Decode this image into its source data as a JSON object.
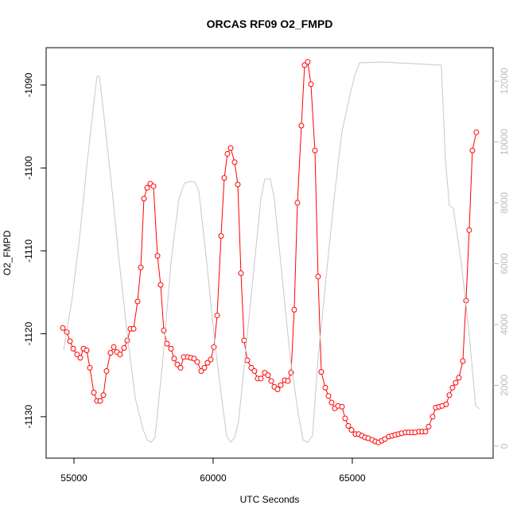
{
  "chart_data": {
    "type": "line",
    "title": "ORCAS RF09 O2_FMPD",
    "x_label": "UTC Seconds",
    "y_label": "O2_FMPD",
    "xlim": [
      54000,
      70060
    ],
    "xticks": [
      55000,
      60000,
      65000
    ],
    "ylim": [
      -1135,
      -1085.5
    ],
    "yticks": [
      -1130,
      -1120,
      -1110,
      -1100,
      -1090
    ],
    "y2lim": [
      -392,
      13098
    ],
    "y2ticks": [
      0,
      2000,
      4000,
      6000,
      8000,
      10000,
      12000
    ],
    "y2tick_color": "#bbbbbb",
    "series": [
      {
        "color": "#ff0000",
        "marker": "circle",
        "x": [
          54600,
          54743,
          54857,
          54971,
          55114,
          55229,
          55343,
          55457,
          55571,
          55714,
          55829,
          55943,
          56057,
          56171,
          56314,
          56429,
          56543,
          56657,
          56800,
          56914,
          57029,
          57143,
          57286,
          57400,
          57514,
          57629,
          57743,
          57857,
          58000,
          58114,
          58229,
          58343,
          58486,
          58600,
          58714,
          58829,
          58943,
          59086,
          59200,
          59314,
          59429,
          59571,
          59686,
          59800,
          59914,
          60029,
          60143,
          60286,
          60400,
          60514,
          60629,
          60771,
          60886,
          61000,
          61114,
          61229,
          61371,
          61486,
          61600,
          61714,
          61857,
          61971,
          62086,
          62200,
          62314,
          62429,
          62571,
          62686,
          62800,
          62914,
          63029,
          63171,
          63286,
          63400,
          63514,
          63657,
          63771,
          63886,
          64029,
          64143,
          64257,
          64371,
          64486,
          64629,
          64743,
          64857,
          64971,
          65114,
          65229,
          65343,
          65457,
          65571,
          65714,
          65829,
          65943,
          66057,
          66171,
          66314,
          66429,
          66543,
          66657,
          66771,
          66914,
          67029,
          67143,
          67257,
          67400,
          67514,
          67629,
          67743,
          67886,
          68000,
          68114,
          68229,
          68371,
          68486,
          68600,
          68714,
          68829,
          68971,
          69086,
          69200,
          69314,
          69457
        ],
        "values": [
          -1119.3,
          -1119.8,
          -1120.9,
          -1121.8,
          -1122.5,
          -1122.9,
          -1121.8,
          -1122.0,
          -1124.1,
          -1127.1,
          -1128.1,
          -1128.1,
          -1127.4,
          -1124.5,
          -1122.3,
          -1121.6,
          -1122.2,
          -1122.5,
          -1121.7,
          -1120.8,
          -1119.4,
          -1119.4,
          -1116.1,
          -1112.0,
          -1103.7,
          -1102.4,
          -1101.9,
          -1102.2,
          -1110.6,
          -1114.1,
          -1119.6,
          -1121.2,
          -1121.8,
          -1123.0,
          -1123.7,
          -1124.1,
          -1122.8,
          -1122.8,
          -1122.9,
          -1123.0,
          -1123.4,
          -1124.5,
          -1124.1,
          -1123.5,
          -1123.1,
          -1121.6,
          -1117.8,
          -1108.2,
          -1101.2,
          -1098.3,
          -1097.6,
          -1099.3,
          -1102.0,
          -1112.7,
          -1120.8,
          -1123.2,
          -1124.1,
          -1124.5,
          -1125.4,
          -1125.4,
          -1124.7,
          -1125.0,
          -1125.7,
          -1126.4,
          -1126.7,
          -1126.2,
          -1125.6,
          -1125.7,
          -1124.7,
          -1117.1,
          -1104.2,
          -1094.9,
          -1087.6,
          -1087.2,
          -1089.9,
          -1097.9,
          -1113.1,
          -1124.6,
          -1126.5,
          -1127.5,
          -1128.3,
          -1129.0,
          -1128.7,
          -1128.8,
          -1130.2,
          -1131.1,
          -1131.6,
          -1132.1,
          -1132.1,
          -1132.3,
          -1132.5,
          -1132.6,
          -1132.8,
          -1133.0,
          -1133.1,
          -1132.9,
          -1132.7,
          -1132.4,
          -1132.3,
          -1132.2,
          -1132.1,
          -1132.0,
          -1131.9,
          -1131.9,
          -1131.9,
          -1131.9,
          -1131.8,
          -1131.8,
          -1131.8,
          -1131.2,
          -1130.0,
          -1128.9,
          -1128.8,
          -1128.7,
          -1128.5,
          -1127.4,
          -1126.5,
          -1125.9,
          -1125.3,
          -1123.3,
          -1116.0,
          -1107.5,
          -1097.9,
          -1095.7
        ]
      },
      {
        "color": "#c8c8c8",
        "axis": "y2",
        "x": [
          54629,
          54914,
          55200,
          55486,
          55714,
          55829,
          55914,
          56057,
          56343,
          56629,
          56914,
          57200,
          57486,
          57629,
          57771,
          57914,
          58200,
          58486,
          58771,
          58971,
          59200,
          59343,
          59486,
          59771,
          60057,
          60343,
          60486,
          60629,
          60771,
          60914,
          61200,
          61486,
          61714,
          61857,
          62057,
          62200,
          62486,
          62771,
          63057,
          63229,
          63400,
          63571,
          63771,
          64057,
          64343,
          64629,
          64914,
          65086,
          65257,
          66057,
          67200,
          68200,
          68257,
          68343,
          68486,
          68629,
          68914,
          69200,
          69429,
          69571
        ],
        "values": [
          3163,
          4732,
          6824,
          9438,
          11268,
          12157,
          12157,
          11007,
          8654,
          6039,
          3686,
          1595,
          549,
          209,
          131,
          288,
          2902,
          6039,
          8131,
          8654,
          8706,
          8680,
          8392,
          6039,
          3425,
          1333,
          340,
          131,
          288,
          810,
          3425,
          6039,
          8131,
          8784,
          8784,
          8131,
          5516,
          2902,
          1072,
          209,
          131,
          340,
          2902,
          5516,
          8131,
          10353,
          11529,
          12183,
          12601,
          12627,
          12575,
          12523,
          11268,
          9438,
          7922,
          7817,
          6039,
          3686,
          1333,
          1229
        ]
      }
    ]
  }
}
